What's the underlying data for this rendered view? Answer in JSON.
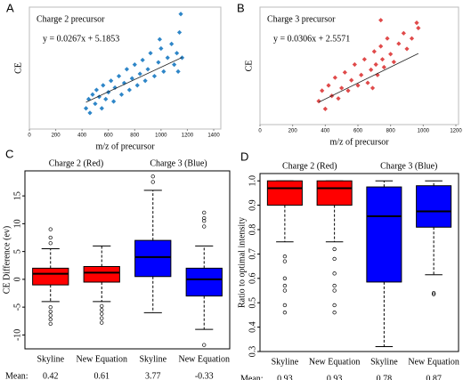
{
  "chart_data": [
    {
      "type": "scatter",
      "panel": "A",
      "title": "Charge 2 precursor",
      "equation": "y = 0.0267x + 5.1853",
      "slope": 0.0267,
      "intercept": 5.1853,
      "x_label": "m/z of precursor",
      "y_label": "CE",
      "color": "#2e86c8",
      "x": [
        430,
        450,
        460,
        480,
        500,
        510,
        530,
        550,
        560,
        580,
        600,
        620,
        640,
        650,
        680,
        700,
        720,
        740,
        760,
        780,
        800,
        820,
        840,
        860,
        880,
        900,
        920,
        950,
        980,
        1000,
        1020,
        1050,
        1080,
        1100,
        1120,
        1140,
        1150,
        1160,
        1130,
        990
      ],
      "y": [
        14,
        18,
        12,
        20,
        16,
        22,
        19,
        14,
        24,
        18,
        21,
        26,
        17,
        23,
        28,
        20,
        25,
        31,
        22,
        27,
        33,
        24,
        29,
        35,
        26,
        31,
        38,
        28,
        34,
        40,
        30,
        36,
        42,
        33,
        38,
        47,
        55,
        36,
        30,
        44
      ],
      "xlim": [
        0,
        1400
      ],
      "xticks": [
        0,
        200,
        400,
        600,
        800,
        1000,
        1200,
        1400
      ],
      "ylim": [
        5,
        58
      ]
    },
    {
      "type": "scatter",
      "panel": "B",
      "title": "Charge 3 precursor",
      "equation": "y = 0.0306x + 2.5571",
      "slope": 0.0306,
      "intercept": 2.5571,
      "x_label": "m/z of precursor",
      "y_label": "CE",
      "color": "#e04a4a",
      "x": [
        360,
        380,
        400,
        420,
        440,
        460,
        480,
        500,
        520,
        540,
        560,
        580,
        600,
        620,
        640,
        660,
        680,
        700,
        710,
        720,
        740,
        750,
        760,
        780,
        800,
        820,
        850,
        880,
        900,
        930,
        960,
        970,
        740,
        690
      ],
      "y": [
        14,
        18,
        11,
        20,
        16,
        23,
        15,
        19,
        25,
        18,
        22,
        28,
        20,
        24,
        30,
        21,
        26,
        33,
        28,
        24,
        35,
        30,
        27,
        38,
        32,
        29,
        36,
        40,
        34,
        38,
        44,
        42,
        45,
        19
      ],
      "xlim": [
        0,
        1200
      ],
      "xticks": [
        0,
        200,
        400,
        600,
        800,
        1000,
        1200
      ],
      "ylim": [
        5,
        50
      ]
    },
    {
      "type": "box",
      "panel": "C",
      "y_label": "CE Difference (ev)",
      "group_labels": [
        "Charge 2 (Red)",
        "Charge 3 (Blue)"
      ],
      "categories": [
        "Skyline",
        "New Equation",
        "Skyline",
        "New Equation"
      ],
      "boxes": [
        {
          "color": "#ff0000",
          "whislo": -4,
          "q1": -1,
          "med": 1,
          "q3": 2,
          "whishi": 5.5,
          "fliers": [
            9,
            7.5,
            6.5,
            -5,
            -5.8,
            -6.5,
            -7.2,
            -8
          ]
        },
        {
          "color": "#ff0000",
          "whislo": -4,
          "q1": -0.5,
          "med": 1.2,
          "q3": 2.3,
          "whishi": 6,
          "fliers": [
            -4.8,
            -5.5,
            -6.2,
            -7,
            -7.8
          ]
        },
        {
          "color": "#0000ff",
          "whislo": -6,
          "q1": 0.5,
          "med": 4,
          "q3": 7,
          "whishi": 16,
          "fliers": [
            18.5,
            17.5
          ]
        },
        {
          "color": "#0000ff",
          "whislo": -9,
          "q1": -3,
          "med": 0,
          "q3": 2,
          "whishi": 6,
          "fliers": [
            12,
            11,
            10.5,
            9.5,
            -11.8
          ]
        }
      ],
      "mean_label": "Mean:",
      "means": [
        0.42,
        0.61,
        3.77,
        -0.33
      ],
      "ylim": [
        -12.5,
        19.5
      ],
      "yticks": [
        -10,
        -5,
        0,
        5,
        10,
        15
      ]
    },
    {
      "type": "box",
      "panel": "D",
      "y_label": "Ratio to optimal intensity",
      "group_labels": [
        "Charge 2 (Red)",
        "Charge 3 (Blue)"
      ],
      "categories": [
        "Skyline",
        "New Equation",
        "Skyline",
        "New Equation"
      ],
      "boxes": [
        {
          "color": "#ff0000",
          "whislo": 0.75,
          "q1": 0.9,
          "med": 0.97,
          "q3": 1,
          "whishi": 1,
          "fliers": [
            0.69,
            0.67,
            0.6,
            0.57,
            0.55,
            0.49,
            0.46
          ]
        },
        {
          "color": "#ff0000",
          "whislo": 0.75,
          "q1": 0.9,
          "med": 0.97,
          "q3": 1,
          "whishi": 1,
          "fliers": [
            0.72,
            0.68,
            0.62,
            0.57,
            0.55,
            0.49,
            0.46
          ]
        },
        {
          "color": "#0000ff",
          "whislo": 0.32,
          "q1": 0.585,
          "med": 0.855,
          "q3": 0.975,
          "whishi": 1,
          "fliers": []
        },
        {
          "color": "#0000ff",
          "whislo": 0.615,
          "q1": 0.81,
          "med": 0.875,
          "q3": 0.98,
          "whishi": 1,
          "fliers": [
            0.54,
            0.535
          ]
        }
      ],
      "mean_label": "Mean:",
      "means": [
        0.93,
        0.93,
        0.78,
        0.87
      ],
      "ylim": [
        0.3,
        1.03
      ],
      "yticks": [
        0.3,
        0.4,
        0.5,
        0.6,
        0.7,
        0.8,
        0.9,
        {
          "value": 1,
          "label": "1.0"
        }
      ]
    }
  ]
}
